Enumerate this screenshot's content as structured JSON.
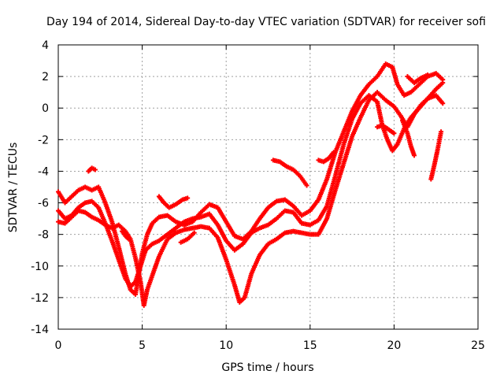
{
  "chart_data": {
    "type": "scatter",
    "title": "Day 194 of 2014, Sidereal Day-to-day VTEC variation (SDTVAR) for receiver sofi",
    "xlabel": "GPS time / hours",
    "ylabel": "SDTVAR / TECUs",
    "xlim": [
      0,
      25
    ],
    "ylim": [
      -14,
      4
    ],
    "xticks": [
      0,
      5,
      10,
      15,
      20,
      25
    ],
    "yticks": [
      -14,
      -12,
      -10,
      -8,
      -6,
      -4,
      -2,
      0,
      2,
      4
    ],
    "grid": true,
    "marker": "+",
    "color": "#ff0000",
    "series": [
      {
        "points": [
          [
            0,
            -5.3
          ],
          [
            0.4,
            -6.0
          ],
          [
            0.8,
            -5.6
          ],
          [
            1.2,
            -5.2
          ],
          [
            1.6,
            -5.0
          ],
          [
            2.0,
            -5.2
          ],
          [
            2.4,
            -5.0
          ],
          [
            2.8,
            -6.0
          ],
          [
            3.2,
            -7.2
          ],
          [
            3.6,
            -8.8
          ],
          [
            4.0,
            -10.5
          ],
          [
            4.3,
            -11.5
          ],
          [
            4.6,
            -11.8
          ],
          [
            4.8,
            -10.5
          ],
          [
            5.0,
            -9.2
          ],
          [
            5.3,
            -8.0
          ],
          [
            5.6,
            -7.3
          ],
          [
            6.0,
            -6.9
          ],
          [
            6.5,
            -6.8
          ],
          [
            7.0,
            -7.2
          ],
          [
            7.5,
            -7.4
          ],
          [
            8.0,
            -7.2
          ],
          [
            8.5,
            -6.6
          ],
          [
            9.0,
            -6.1
          ],
          [
            9.5,
            -6.3
          ],
          [
            10.0,
            -7.2
          ],
          [
            10.5,
            -8.1
          ],
          [
            11.0,
            -8.3
          ],
          [
            11.5,
            -7.8
          ],
          [
            12.0,
            -7.0
          ],
          [
            12.5,
            -6.3
          ],
          [
            13.0,
            -5.9
          ],
          [
            13.5,
            -5.8
          ],
          [
            14.0,
            -6.2
          ],
          [
            14.5,
            -6.8
          ],
          [
            15.0,
            -6.5
          ],
          [
            15.5,
            -5.8
          ],
          [
            16.0,
            -4.5
          ],
          [
            16.5,
            -2.8
          ],
          [
            17.0,
            -1.5
          ],
          [
            17.5,
            -0.2
          ],
          [
            18.0,
            0.8
          ],
          [
            18.5,
            1.5
          ],
          [
            19.0,
            2.0
          ],
          [
            19.5,
            2.8
          ],
          [
            19.9,
            2.6
          ],
          [
            20.2,
            1.5
          ],
          [
            20.6,
            0.8
          ],
          [
            21.0,
            1.0
          ],
          [
            21.5,
            1.5
          ],
          [
            22.0,
            2.0
          ],
          [
            22.5,
            2.2
          ],
          [
            22.9,
            1.8
          ]
        ]
      },
      {
        "points": [
          [
            0,
            -6.5
          ],
          [
            0.4,
            -7.0
          ],
          [
            0.8,
            -6.8
          ],
          [
            1.2,
            -6.3
          ],
          [
            1.6,
            -6.0
          ],
          [
            2.0,
            -5.9
          ],
          [
            2.4,
            -6.3
          ],
          [
            2.8,
            -7.3
          ],
          [
            3.2,
            -8.4
          ],
          [
            3.6,
            -9.6
          ],
          [
            4.0,
            -10.8
          ],
          [
            4.3,
            -11.3
          ],
          [
            4.6,
            -11.0
          ],
          [
            4.9,
            -10.0
          ],
          [
            5.2,
            -9.0
          ],
          [
            5.6,
            -8.6
          ],
          [
            6.0,
            -8.4
          ],
          [
            6.5,
            -8.0
          ],
          [
            7.0,
            -7.6
          ],
          [
            7.5,
            -7.2
          ],
          [
            8.0,
            -7.0
          ],
          [
            8.5,
            -6.9
          ],
          [
            9.0,
            -6.7
          ],
          [
            9.5,
            -7.4
          ],
          [
            10.0,
            -8.4
          ],
          [
            10.5,
            -9.0
          ],
          [
            11.0,
            -8.6
          ],
          [
            11.5,
            -7.9
          ],
          [
            12.0,
            -7.6
          ],
          [
            12.5,
            -7.4
          ],
          [
            13.0,
            -7.0
          ],
          [
            13.5,
            -6.5
          ],
          [
            14.0,
            -6.6
          ],
          [
            14.5,
            -7.3
          ],
          [
            15.0,
            -7.4
          ],
          [
            15.5,
            -7.1
          ],
          [
            16.0,
            -6.2
          ],
          [
            16.5,
            -4.3
          ],
          [
            17.0,
            -2.3
          ],
          [
            17.5,
            -0.7
          ],
          [
            18.0,
            0.3
          ],
          [
            18.5,
            0.8
          ],
          [
            19.0,
            0.4
          ],
          [
            19.3,
            -1.1
          ],
          [
            19.6,
            -2.0
          ],
          [
            19.9,
            -2.7
          ],
          [
            20.2,
            -2.3
          ],
          [
            20.6,
            -1.3
          ],
          [
            21.0,
            -0.6
          ],
          [
            21.5,
            0.0
          ],
          [
            22.0,
            0.6
          ],
          [
            22.5,
            1.2
          ],
          [
            22.9,
            1.6
          ]
        ]
      },
      {
        "points": [
          [
            0,
            -7.2
          ],
          [
            0.4,
            -7.3
          ],
          [
            0.8,
            -6.9
          ],
          [
            1.2,
            -6.5
          ],
          [
            1.6,
            -6.6
          ],
          [
            2.0,
            -6.9
          ],
          [
            2.4,
            -7.1
          ],
          [
            2.8,
            -7.4
          ],
          [
            3.2,
            -7.6
          ],
          [
            3.6,
            -7.4
          ],
          [
            4.0,
            -7.8
          ],
          [
            4.3,
            -8.3
          ],
          [
            4.6,
            -9.5
          ],
          [
            4.9,
            -11.0
          ],
          [
            5.1,
            -12.5
          ],
          [
            5.3,
            -11.5
          ],
          [
            5.6,
            -10.6
          ],
          [
            6.0,
            -9.4
          ],
          [
            6.5,
            -8.3
          ],
          [
            7.0,
            -7.9
          ],
          [
            7.5,
            -7.7
          ],
          [
            8.0,
            -7.6
          ],
          [
            8.5,
            -7.5
          ],
          [
            9.0,
            -7.6
          ],
          [
            9.5,
            -8.2
          ],
          [
            10.0,
            -9.6
          ],
          [
            10.5,
            -11.2
          ],
          [
            10.8,
            -12.3
          ],
          [
            11.1,
            -12.0
          ],
          [
            11.5,
            -10.5
          ],
          [
            12.0,
            -9.3
          ],
          [
            12.5,
            -8.6
          ],
          [
            13.0,
            -8.3
          ],
          [
            13.5,
            -7.9
          ],
          [
            14.0,
            -7.8
          ],
          [
            14.5,
            -7.9
          ],
          [
            15.0,
            -8.0
          ],
          [
            15.5,
            -8.0
          ],
          [
            16.0,
            -7.0
          ],
          [
            16.5,
            -5.2
          ],
          [
            17.0,
            -3.5
          ],
          [
            17.5,
            -1.8
          ],
          [
            18.0,
            -0.6
          ],
          [
            18.5,
            0.5
          ],
          [
            19.0,
            1.0
          ],
          [
            19.5,
            0.5
          ],
          [
            20.0,
            0.1
          ],
          [
            20.4,
            -0.5
          ],
          [
            20.8,
            -1.2
          ],
          [
            21.2,
            -0.4
          ],
          [
            21.6,
            0.2
          ],
          [
            22.0,
            0.6
          ],
          [
            22.5,
            0.8
          ],
          [
            22.9,
            0.3
          ]
        ]
      },
      {
        "points": [
          [
            1.8,
            -4.0
          ],
          [
            2.0,
            -3.8
          ],
          [
            2.2,
            -3.9
          ]
        ]
      },
      {
        "points": [
          [
            6.0,
            -5.6
          ],
          [
            6.3,
            -6.0
          ],
          [
            6.6,
            -6.3
          ],
          [
            7.0,
            -6.1
          ],
          [
            7.4,
            -5.8
          ],
          [
            7.7,
            -5.7
          ]
        ]
      },
      {
        "points": [
          [
            12.8,
            -3.3
          ],
          [
            13.2,
            -3.4
          ],
          [
            13.6,
            -3.7
          ],
          [
            14.0,
            -3.9
          ],
          [
            14.4,
            -4.3
          ],
          [
            14.8,
            -4.9
          ]
        ]
      },
      {
        "points": [
          [
            7.3,
            -8.5
          ],
          [
            7.7,
            -8.3
          ],
          [
            8.1,
            -7.9
          ]
        ]
      },
      {
        "points": [
          [
            15.5,
            -3.3
          ],
          [
            15.8,
            -3.4
          ],
          [
            16.1,
            -3.2
          ],
          [
            16.4,
            -2.8
          ]
        ]
      },
      {
        "points": [
          [
            19.0,
            -1.2
          ],
          [
            19.3,
            -1.1
          ],
          [
            19.6,
            -1.3
          ],
          [
            20.0,
            -1.6
          ]
        ]
      },
      {
        "points": [
          [
            20.5,
            -0.8
          ],
          [
            20.8,
            -1.6
          ],
          [
            21.0,
            -2.4
          ],
          [
            21.2,
            -3.0
          ]
        ]
      },
      {
        "points": [
          [
            22.2,
            -4.5
          ],
          [
            22.4,
            -3.6
          ],
          [
            22.6,
            -2.6
          ],
          [
            22.8,
            -1.5
          ]
        ]
      },
      {
        "points": [
          [
            3.8,
            -7.8
          ],
          [
            4.0,
            -8.1
          ],
          [
            4.2,
            -8.3
          ]
        ]
      },
      {
        "points": [
          [
            20.8,
            2.0
          ],
          [
            21.2,
            1.6
          ],
          [
            21.6,
            1.9
          ],
          [
            22.0,
            2.1
          ]
        ]
      }
    ]
  }
}
